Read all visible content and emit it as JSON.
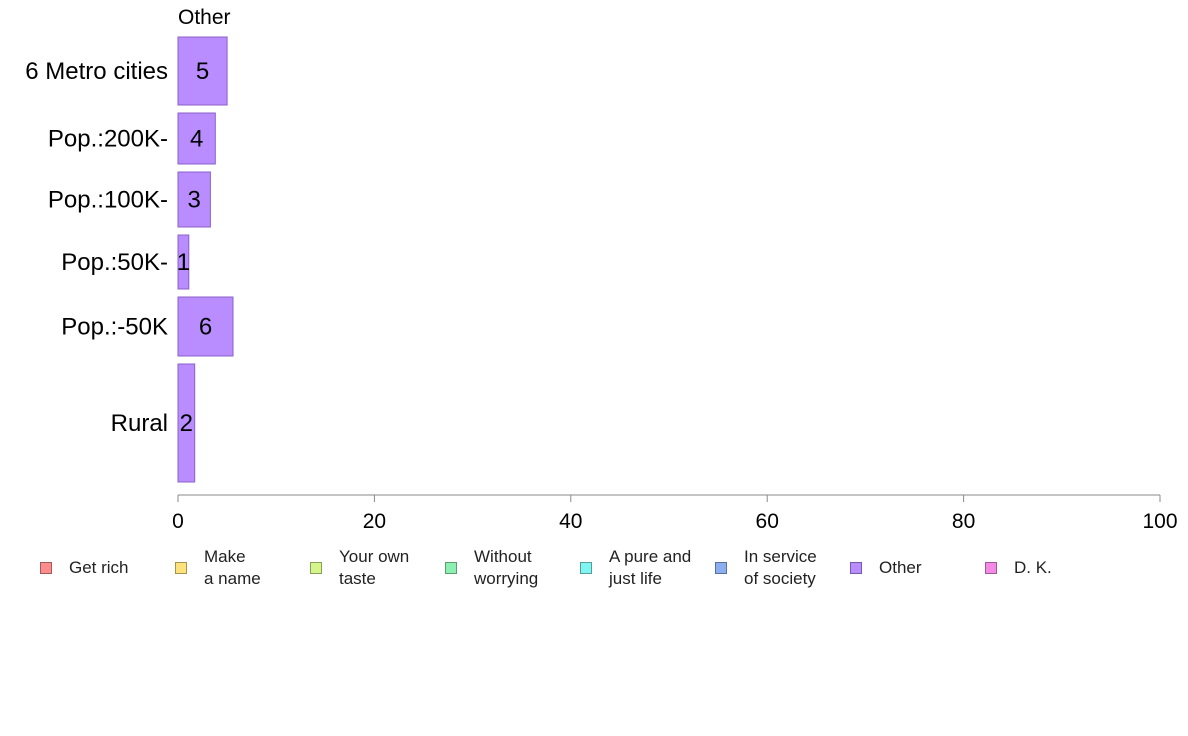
{
  "chart_data": {
    "type": "bar",
    "orientation": "horizontal",
    "title": "Other",
    "categories": [
      "6 Metro cities",
      "Pop.:200K-",
      "Pop.:100K-",
      "Pop.:50K-",
      "Pop.:-50K",
      "Rural"
    ],
    "values": [
      5,
      4,
      3,
      1,
      6,
      2
    ],
    "value_labels": [
      "5",
      "4",
      "3",
      "1",
      "6",
      "2"
    ],
    "bar_widths": [
      5.0,
      3.8,
      3.3,
      1.1,
      5.6,
      1.7
    ],
    "xlim": [
      0,
      100
    ],
    "xticks": [
      "0",
      "20",
      "40",
      "60",
      "80",
      "100"
    ],
    "grid": false,
    "bar_color": "#b98cff",
    "bar_edge": "#8a62c8",
    "legend_position": "bottom",
    "legend": [
      {
        "label": "Get rich",
        "color": "#ff8c8c"
      },
      {
        "label": "Make\na name",
        "color": "#ffe27a"
      },
      {
        "label": "Your own\ntaste",
        "color": "#d4f58a"
      },
      {
        "label": "Without\nworrying",
        "color": "#8cf0b0"
      },
      {
        "label": "A pure and\njust life",
        "color": "#7ef5f0"
      },
      {
        "label": "In service\nof society",
        "color": "#8aaef0"
      },
      {
        "label": "Other",
        "color": "#b98cff"
      },
      {
        "label": "D. K.",
        "color": "#f58ae6"
      }
    ]
  }
}
